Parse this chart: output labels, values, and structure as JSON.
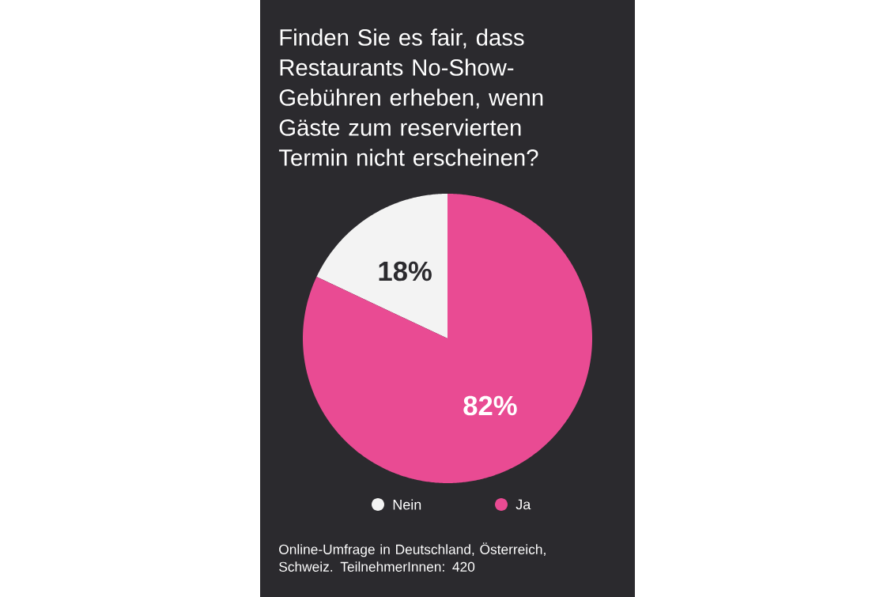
{
  "chart_data": {
    "type": "pie",
    "title": "Finden Sie es fair, dass Restaurants No-Show-Gebühren erheben, wenn Gäste zum reservierten Termin nicht erscheinen?",
    "categories": [
      "Nein",
      "Ja"
    ],
    "values": [
      18,
      82
    ],
    "colors": [
      "#f3f3f3",
      "#e94b93"
    ],
    "value_labels": [
      "18%",
      "82%"
    ],
    "legend": "bottom",
    "annotations": [
      "Online-Umfrage in Deutschland, Österreich, Schweiz. TeilnehmerInnen: 420"
    ]
  }
}
